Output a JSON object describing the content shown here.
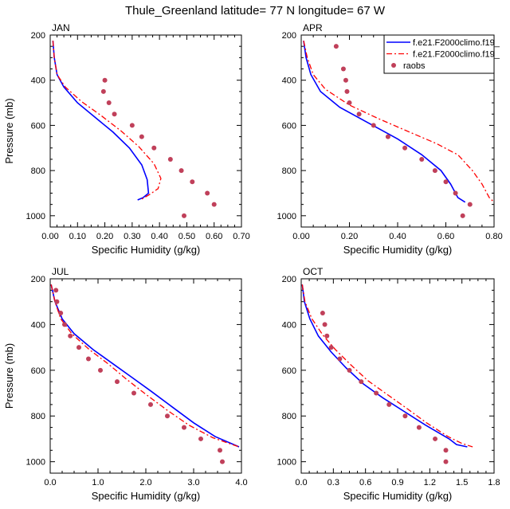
{
  "figure": {
    "title": "Thule_Greenland  latitude= 77 N longitude= 67 W"
  },
  "colors": {
    "model1": "#0000ff",
    "model2": "#ff0000",
    "raobs": "#c0405a",
    "axis": "#000000"
  },
  "legend": {
    "items": [
      {
        "label": "f.e21.F2000climo.f19_",
        "style": "solid"
      },
      {
        "label": "f.e21.F2000climo.f19_",
        "style": "dashed"
      },
      {
        "label": "raobs",
        "style": "dot"
      }
    ]
  },
  "chart_data": [
    {
      "type": "line",
      "panel": "JAN",
      "xlabel": "Specific Humidity (g/kg)",
      "ylabel": "Pressure (mb)",
      "xlim": [
        0,
        0.7
      ],
      "ylim": [
        200,
        1050
      ],
      "x_ticks": [
        0,
        0.1,
        0.2,
        0.3,
        0.4,
        0.5,
        0.6,
        0.7
      ],
      "x_tick_labels": [
        "0.00",
        "0.10",
        "0.20",
        "0.30",
        "0.40",
        "0.50",
        "0.60",
        "0.70"
      ],
      "y_ticks": [
        200,
        400,
        600,
        800,
        1000
      ],
      "y_tick_labels": [
        "200",
        "400",
        "600",
        "800",
        "1000"
      ],
      "series": [
        {
          "name": "f.e21.F2000climo.f19_ (solid)",
          "points": [
            [
              0.01,
              225
            ],
            [
              0.015,
              300
            ],
            [
              0.025,
              375
            ],
            [
              0.05,
              430
            ],
            [
              0.1,
              500
            ],
            [
              0.165,
              565
            ],
            [
              0.23,
              630
            ],
            [
              0.29,
              700
            ],
            [
              0.335,
              775
            ],
            [
              0.355,
              840
            ],
            [
              0.36,
              900
            ],
            [
              0.34,
              920
            ],
            [
              0.32,
              930
            ]
          ]
        },
        {
          "name": "f.e21.F2000climo.f19_ (dashed)",
          "points": [
            [
              0.01,
              225
            ],
            [
              0.015,
              300
            ],
            [
              0.025,
              375
            ],
            [
              0.055,
              430
            ],
            [
              0.115,
              495
            ],
            [
              0.185,
              555
            ],
            [
              0.26,
              625
            ],
            [
              0.325,
              695
            ],
            [
              0.38,
              770
            ],
            [
              0.405,
              835
            ],
            [
              0.395,
              880
            ],
            [
              0.365,
              905
            ],
            [
              0.33,
              930
            ]
          ]
        },
        {
          "name": "raobs",
          "points": [
            [
              0.2,
              400
            ],
            [
              0.195,
              450
            ],
            [
              0.215,
              500
            ],
            [
              0.235,
              550
            ],
            [
              0.3,
              600
            ],
            [
              0.335,
              650
            ],
            [
              0.38,
              700
            ],
            [
              0.44,
              750
            ],
            [
              0.48,
              800
            ],
            [
              0.52,
              850
            ],
            [
              0.575,
              900
            ],
            [
              0.6,
              950
            ],
            [
              0.49,
              1000
            ]
          ]
        }
      ]
    },
    {
      "type": "line",
      "panel": "APR",
      "xlabel": "Specific Humidity (g/kg)",
      "ylabel": "",
      "xlim": [
        0,
        0.8
      ],
      "ylim": [
        200,
        1050
      ],
      "x_ticks": [
        0,
        0.2,
        0.4,
        0.6,
        0.8
      ],
      "x_tick_labels": [
        "0.00",
        "0.20",
        "0.40",
        "0.60",
        "0.80"
      ],
      "y_ticks": [
        200,
        400,
        600,
        800,
        1000
      ],
      "y_tick_labels": [
        "200",
        "400",
        "600",
        "800",
        "1000"
      ],
      "series": [
        {
          "name": "f.e21.F2000climo.f19_ (solid)",
          "points": [
            [
              0.01,
              225
            ],
            [
              0.02,
              300
            ],
            [
              0.04,
              375
            ],
            [
              0.08,
              450
            ],
            [
              0.16,
              520
            ],
            [
              0.28,
              590
            ],
            [
              0.4,
              660
            ],
            [
              0.5,
              730
            ],
            [
              0.58,
              800
            ],
            [
              0.62,
              860
            ],
            [
              0.65,
              920
            ],
            [
              0.68,
              940
            ]
          ]
        },
        {
          "name": "f.e21.F2000climo.f19_ (dashed)",
          "points": [
            [
              0.01,
              225
            ],
            [
              0.025,
              300
            ],
            [
              0.05,
              375
            ],
            [
              0.1,
              440
            ],
            [
              0.2,
              510
            ],
            [
              0.32,
              570
            ],
            [
              0.45,
              630
            ],
            [
              0.56,
              680
            ],
            [
              0.65,
              730
            ],
            [
              0.71,
              800
            ],
            [
              0.75,
              860
            ],
            [
              0.78,
              920
            ],
            [
              0.8,
              940
            ]
          ]
        },
        {
          "name": "raobs",
          "points": [
            [
              0.145,
              250
            ],
            [
              0.175,
              350
            ],
            [
              0.185,
              400
            ],
            [
              0.19,
              450
            ],
            [
              0.2,
              500
            ],
            [
              0.24,
              550
            ],
            [
              0.3,
              600
            ],
            [
              0.36,
              650
            ],
            [
              0.43,
              700
            ],
            [
              0.5,
              750
            ],
            [
              0.555,
              800
            ],
            [
              0.6,
              850
            ],
            [
              0.64,
              900
            ],
            [
              0.7,
              950
            ],
            [
              0.67,
              1000
            ]
          ]
        }
      ]
    },
    {
      "type": "line",
      "panel": "JUL",
      "xlabel": "Specific Humidity (g/kg)",
      "ylabel": "Pressure (mb)",
      "xlim": [
        0,
        4.0
      ],
      "ylim": [
        200,
        1050
      ],
      "x_ticks": [
        0,
        1,
        2,
        3,
        4
      ],
      "x_tick_labels": [
        "0.0",
        "1.0",
        "2.0",
        "3.0",
        "4.0"
      ],
      "y_ticks": [
        200,
        400,
        600,
        800,
        1000
      ],
      "y_tick_labels": [
        "200",
        "400",
        "600",
        "800",
        "1000"
      ],
      "series": [
        {
          "name": "f.e21.F2000climo.f19_ (solid)",
          "points": [
            [
              0.02,
              225
            ],
            [
              0.1,
              300
            ],
            [
              0.25,
              375
            ],
            [
              0.5,
              440
            ],
            [
              0.9,
              510
            ],
            [
              1.3,
              570
            ],
            [
              1.7,
              630
            ],
            [
              2.1,
              690
            ],
            [
              2.55,
              760
            ],
            [
              3.0,
              830
            ],
            [
              3.45,
              890
            ],
            [
              3.95,
              935
            ]
          ]
        },
        {
          "name": "f.e21.F2000climo.f19_ (dashed)",
          "points": [
            [
              0.02,
              225
            ],
            [
              0.1,
              300
            ],
            [
              0.22,
              375
            ],
            [
              0.45,
              440
            ],
            [
              0.82,
              510
            ],
            [
              1.2,
              570
            ],
            [
              1.6,
              640
            ],
            [
              2.0,
              705
            ],
            [
              2.45,
              775
            ],
            [
              2.9,
              840
            ],
            [
              3.4,
              895
            ],
            [
              3.95,
              935
            ]
          ]
        },
        {
          "name": "raobs",
          "points": [
            [
              0.12,
              250
            ],
            [
              0.14,
              300
            ],
            [
              0.22,
              350
            ],
            [
              0.3,
              400
            ],
            [
              0.42,
              450
            ],
            [
              0.6,
              500
            ],
            [
              0.8,
              550
            ],
            [
              1.05,
              600
            ],
            [
              1.4,
              650
            ],
            [
              1.75,
              700
            ],
            [
              2.1,
              750
            ],
            [
              2.45,
              800
            ],
            [
              2.8,
              850
            ],
            [
              3.15,
              900
            ],
            [
              3.55,
              950
            ],
            [
              3.6,
              1000
            ]
          ]
        }
      ]
    },
    {
      "type": "line",
      "panel": "OCT",
      "xlabel": "Specific Humidity (g/kg)",
      "ylabel": "",
      "xlim": [
        0,
        1.8
      ],
      "ylim": [
        200,
        1050
      ],
      "x_ticks": [
        0,
        0.3,
        0.6,
        0.9,
        1.2,
        1.5,
        1.8
      ],
      "x_tick_labels": [
        "0.0",
        "0.3",
        "0.6",
        "0.9",
        "1.2",
        "1.5",
        "1.8"
      ],
      "y_ticks": [
        200,
        400,
        600,
        800,
        1000
      ],
      "y_tick_labels": [
        "200",
        "400",
        "600",
        "800",
        "1000"
      ],
      "series": [
        {
          "name": "f.e21.F2000climo.f19_ (solid)",
          "points": [
            [
              0.01,
              225
            ],
            [
              0.03,
              300
            ],
            [
              0.08,
              375
            ],
            [
              0.16,
              450
            ],
            [
              0.28,
              520
            ],
            [
              0.42,
              590
            ],
            [
              0.58,
              660
            ],
            [
              0.76,
              720
            ],
            [
              0.96,
              780
            ],
            [
              1.16,
              840
            ],
            [
              1.38,
              900
            ],
            [
              1.45,
              925
            ],
            [
              1.55,
              935
            ]
          ]
        },
        {
          "name": "f.e21.F2000climo.f19_ (dashed)",
          "points": [
            [
              0.01,
              225
            ],
            [
              0.035,
              300
            ],
            [
              0.1,
              375
            ],
            [
              0.2,
              445
            ],
            [
              0.32,
              510
            ],
            [
              0.46,
              575
            ],
            [
              0.62,
              645
            ],
            [
              0.8,
              705
            ],
            [
              0.98,
              765
            ],
            [
              1.17,
              830
            ],
            [
              1.37,
              890
            ],
            [
              1.5,
              920
            ],
            [
              1.6,
              935
            ]
          ]
        },
        {
          "name": "raobs",
          "points": [
            [
              0.2,
              350
            ],
            [
              0.22,
              400
            ],
            [
              0.24,
              450
            ],
            [
              0.28,
              500
            ],
            [
              0.36,
              550
            ],
            [
              0.45,
              600
            ],
            [
              0.56,
              650
            ],
            [
              0.7,
              700
            ],
            [
              0.82,
              750
            ],
            [
              0.97,
              800
            ],
            [
              1.1,
              850
            ],
            [
              1.25,
              900
            ],
            [
              1.35,
              950
            ],
            [
              1.35,
              1000
            ]
          ]
        }
      ]
    }
  ]
}
